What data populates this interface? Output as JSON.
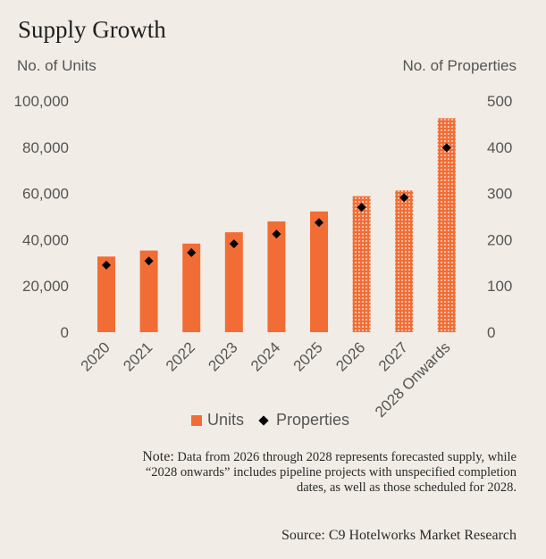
{
  "chart_data": {
    "type": "bar",
    "title": "Supply Growth",
    "ylabel": "No. of Units",
    "y2label": "No. of Properties",
    "ylim": [
      0,
      100000
    ],
    "y2lim": [
      0,
      500
    ],
    "yticks": [
      "100,000",
      "80,000",
      "60,000",
      "40,000",
      "20,000",
      "0"
    ],
    "y2ticks": [
      "500",
      "400",
      "300",
      "200",
      "100",
      "0"
    ],
    "categories": [
      "2020",
      "2021",
      "2022",
      "2023",
      "2024",
      "2025",
      "2026",
      "2027",
      "2028 Onwards"
    ],
    "series": [
      {
        "name": "Units",
        "type": "bar",
        "axis": "left",
        "color": "#f26d35",
        "values": [
          32700,
          35300,
          38300,
          43200,
          47900,
          52200,
          58800,
          61300,
          92500
        ],
        "forecast": [
          false,
          false,
          false,
          false,
          false,
          false,
          true,
          true,
          true
        ]
      },
      {
        "name": "Properties",
        "type": "scatter",
        "axis": "right",
        "marker": "diamond",
        "color": "#000000",
        "values": [
          145,
          154,
          172,
          191,
          212,
          237,
          270,
          291,
          399
        ]
      }
    ],
    "legend": "bottom",
    "grid": false
  },
  "note": {
    "label": "Note:",
    "text": "Data from 2026 through 2028 represents forecasted supply, while “2028 onwards” includes pipeline projects with unspecified completion dates, as well as those scheduled for 2028."
  },
  "source": "Source: C9 Hotelworks Market Research"
}
